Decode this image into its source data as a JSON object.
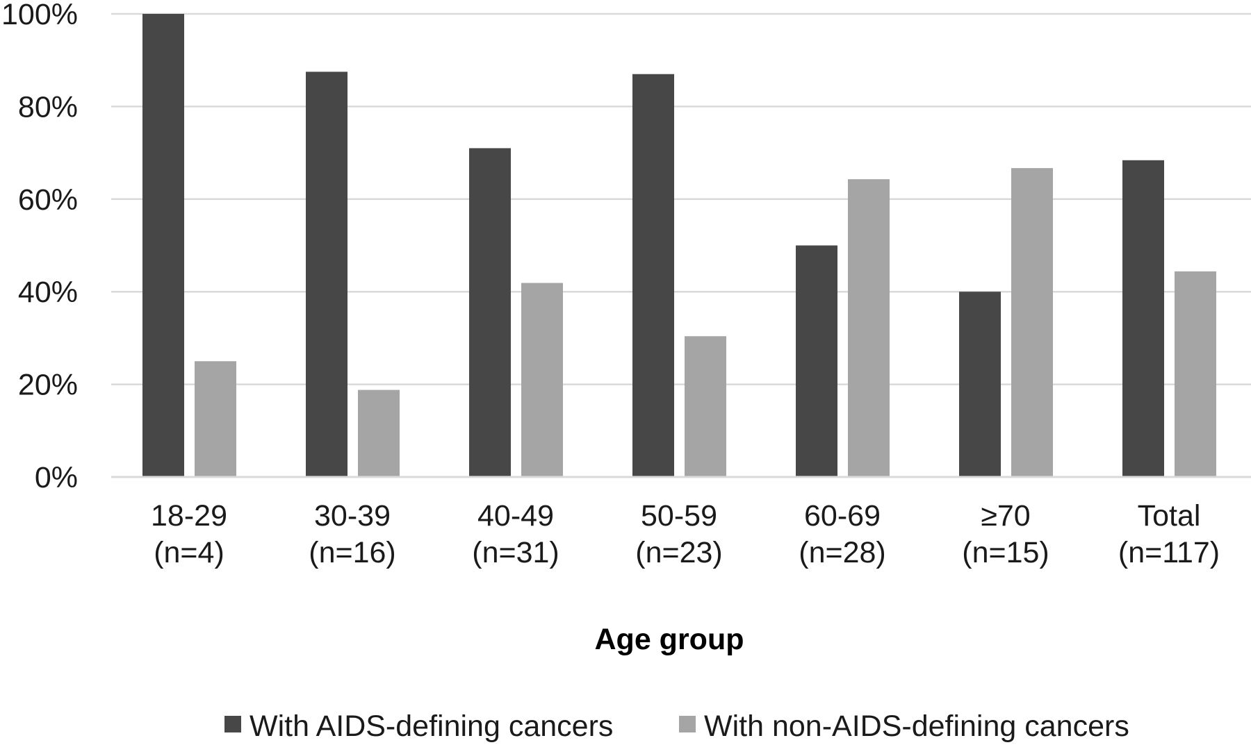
{
  "chart_data": {
    "type": "bar",
    "categories": [
      [
        "18-29",
        "(n=4)"
      ],
      [
        "30-39",
        "(n=16)"
      ],
      [
        "40-49",
        "(n=31)"
      ],
      [
        "50-59",
        "(n=23)"
      ],
      [
        "60-69",
        "(n=28)"
      ],
      [
        "≥70",
        "(n=15)"
      ],
      [
        "Total",
        "(n=117)"
      ]
    ],
    "series": [
      {
        "name": "With AIDS-defining cancers",
        "color": "#474747",
        "values": [
          100,
          87.5,
          71,
          87,
          50,
          40,
          68.4
        ]
      },
      {
        "name": "With non-AIDS-defining cancers",
        "color": "#a5a5a5",
        "values": [
          25,
          18.8,
          41.9,
          30.4,
          64.3,
          66.7,
          44.4
        ]
      }
    ],
    "xlabel": "Age group",
    "ylabel": "",
    "ylim": [
      0,
      100
    ],
    "yticks": [
      0,
      20,
      40,
      60,
      80,
      100
    ],
    "ytick_format": "%",
    "grid": true,
    "gridline_color": "#d9d9d9",
    "legend_position": "bottom"
  }
}
